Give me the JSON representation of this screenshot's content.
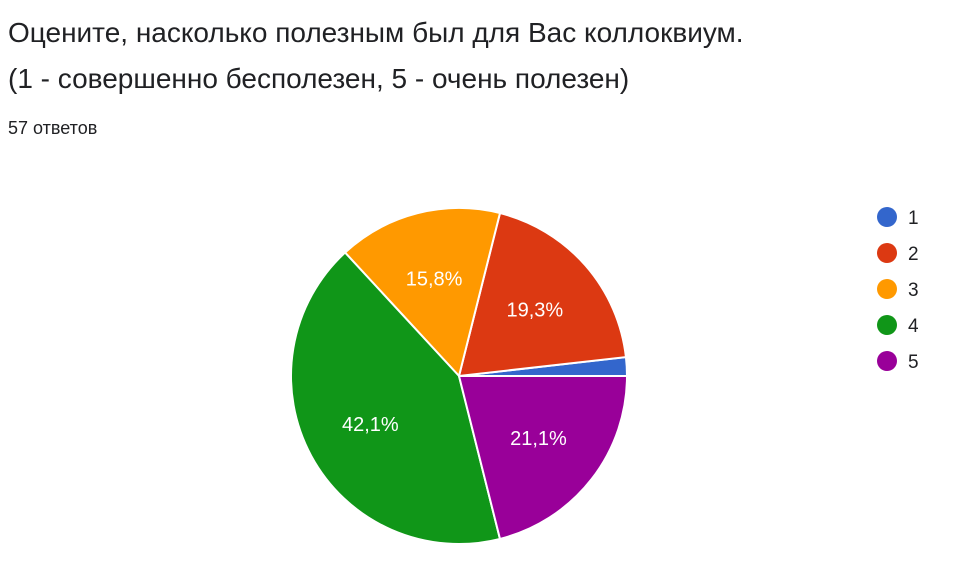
{
  "header": {
    "title_line1": "Оцените, насколько полезным был для Вас коллоквиум.",
    "title_line2": "(1 - совершенно бесполезен, 5 - очень полезен)",
    "responses": "57 ответов"
  },
  "chart_data": {
    "type": "pie",
    "title": "Оцените, насколько полезным был для Вас коллоквиум. (1 - совершенно бесполезен, 5 - очень полезен)",
    "categories": [
      "1",
      "2",
      "3",
      "4",
      "5"
    ],
    "values": [
      1.8,
      19.3,
      15.8,
      42.1,
      21.1
    ],
    "counts": [
      1,
      11,
      9,
      24,
      12
    ],
    "labels": [
      "",
      "19,3%",
      "15,8%",
      "42,1%",
      "21,1%"
    ],
    "colors": [
      "#3366cc",
      "#dc3912",
      "#ff9900",
      "#109618",
      "#990099"
    ],
    "legend_position": "right",
    "total_label": "57 ответов"
  }
}
